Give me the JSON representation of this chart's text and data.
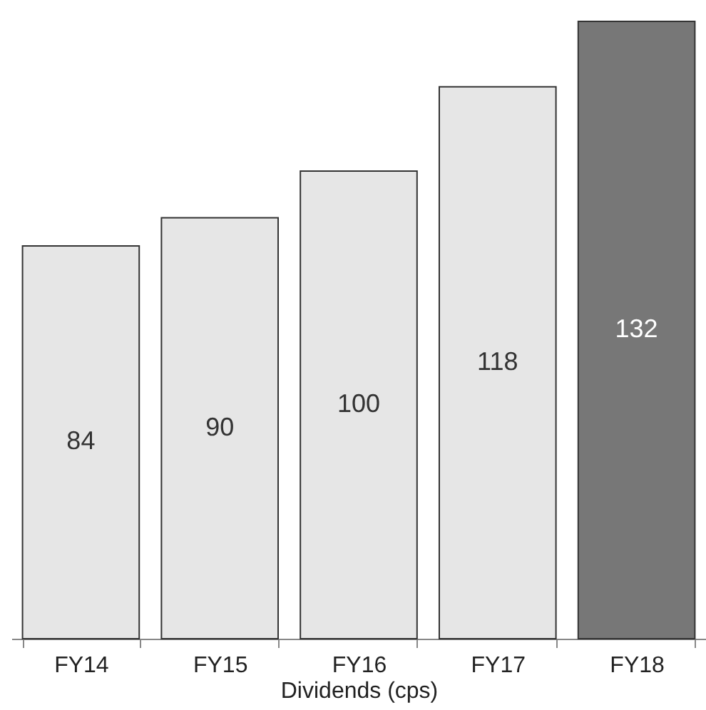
{
  "chart_data": {
    "type": "bar",
    "xlabel": "Dividends (cps)",
    "categories": [
      "FY14",
      "FY15",
      "FY16",
      "FY17",
      "FY18"
    ],
    "values": [
      84,
      90,
      100,
      118,
      132
    ],
    "colors": [
      "#e6e6e6",
      "#e6e6e6",
      "#e6e6e6",
      "#e6e6e6",
      "#777777"
    ],
    "data_labels": true,
    "tick_labels": "x"
  }
}
